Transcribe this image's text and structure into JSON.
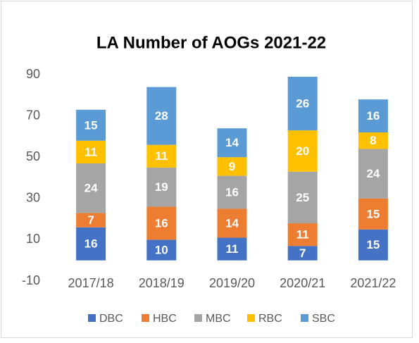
{
  "chart_data": {
    "type": "stacked_bar",
    "title": "LA Number of AOGs 2021-22",
    "categories": [
      "2017/18",
      "2018/19",
      "2019/20",
      "2020/21",
      "2021/22"
    ],
    "series": [
      {
        "name": "DBC",
        "color": "#4472c4",
        "values": [
          16,
          10,
          11,
          7,
          15
        ]
      },
      {
        "name": "HBC",
        "color": "#ed7d31",
        "values": [
          7,
          16,
          14,
          11,
          15
        ]
      },
      {
        "name": "MBC",
        "color": "#a5a5a5",
        "values": [
          24,
          19,
          16,
          25,
          24
        ]
      },
      {
        "name": "RBC",
        "color": "#ffc000",
        "values": [
          11,
          11,
          9,
          20,
          8
        ]
      },
      {
        "name": "SBC",
        "color": "#5b9bd5",
        "values": [
          15,
          28,
          14,
          26,
          16
        ]
      }
    ],
    "ylim": [
      -10,
      90
    ],
    "yticks": [
      -10,
      10,
      30,
      50,
      70,
      90
    ],
    "grid": false,
    "legend": "bottom"
  }
}
